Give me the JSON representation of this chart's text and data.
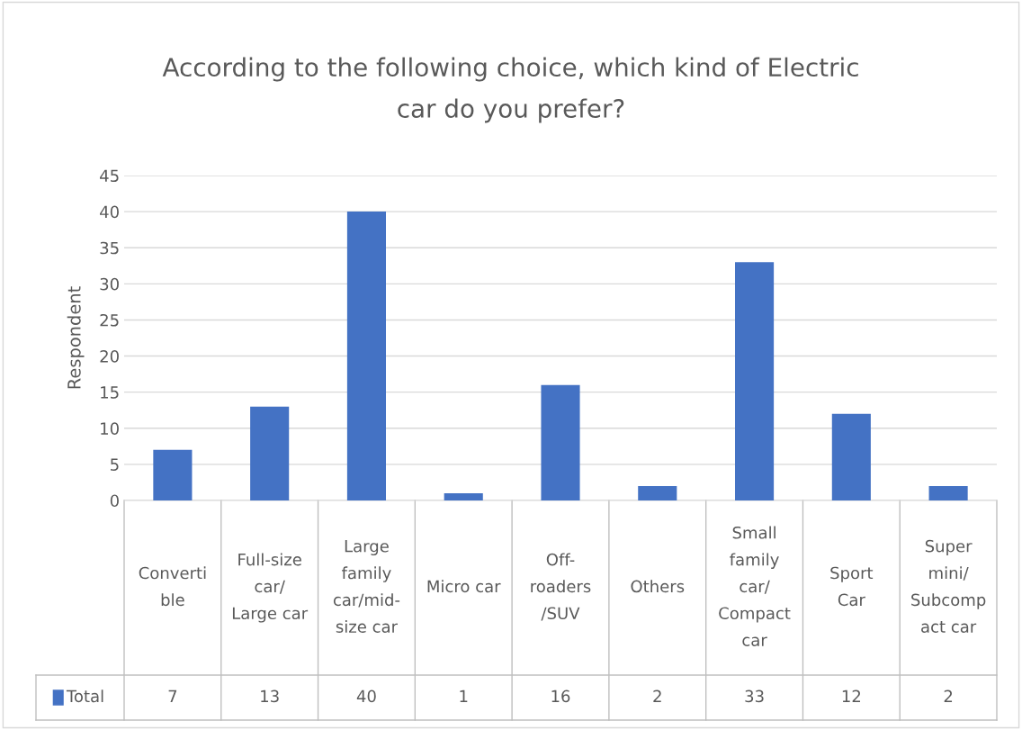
{
  "chart_data": {
    "type": "bar",
    "title": "According to the following choice, which kind of Electric\ncar do you prefer?",
    "ylabel": "Respondent",
    "categories": [
      "Converti\nble",
      "Full-size\ncar/\nLarge car",
      "Large\nfamily\ncar/mid-\nsize car",
      "Micro car",
      "Off-\nroaders\n/SUV",
      "Others",
      "Small\nfamily\ncar/\nCompact\ncar",
      "Sport\nCar",
      "Super\nmini/\nSubcomp\nact car"
    ],
    "series": [
      {
        "name": "Total",
        "color": "#4472c4",
        "values": [
          7,
          13,
          40,
          1,
          16,
          2,
          33,
          12,
          2
        ]
      }
    ],
    "ylim": [
      0,
      45
    ],
    "yticks": [
      0,
      5,
      10,
      15,
      20,
      25,
      30,
      35,
      40,
      45
    ],
    "grid": "y",
    "data_labels": true,
    "legend": "bottom"
  }
}
